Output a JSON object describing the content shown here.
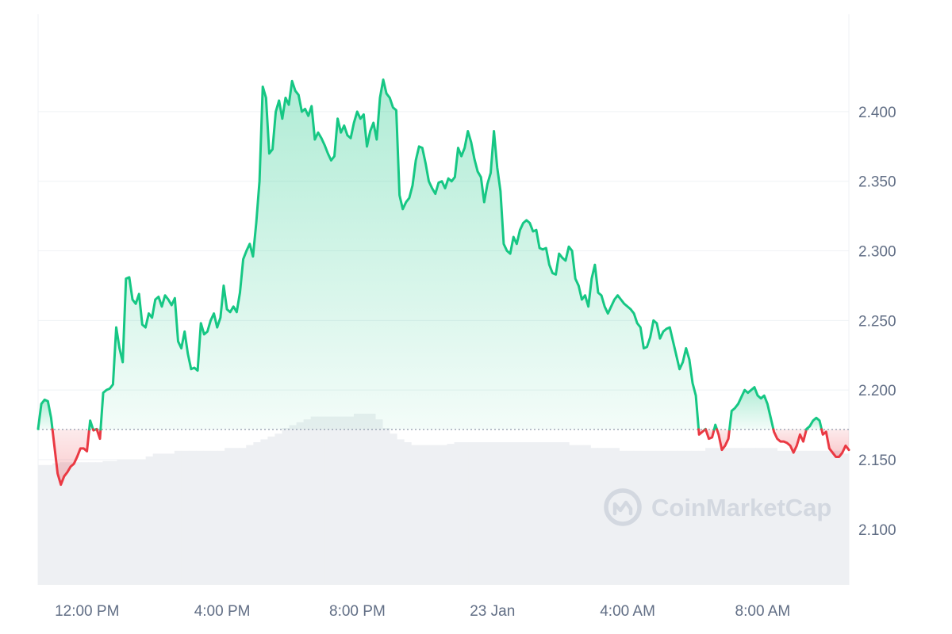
{
  "chart_data": {
    "type": "area",
    "baseline": 2.1717,
    "ylim": [
      2.06,
      2.47
    ],
    "y_ticks": [
      "2.400",
      "2.350",
      "2.300",
      "2.250",
      "2.200",
      "2.150",
      "2.100"
    ],
    "y_tick_values": [
      2.4,
      2.35,
      2.3,
      2.25,
      2.2,
      2.15,
      2.1
    ],
    "x_ticks": [
      "12:00 PM",
      "4:00 PM",
      "8:00 PM",
      "23 Jan",
      "4:00 AM",
      "8:00 AM"
    ],
    "x_tick_hours": [
      1.45,
      5.45,
      9.45,
      13.45,
      17.45,
      21.45
    ],
    "x_range_hours": [
      0,
      24
    ],
    "series": [
      {
        "values": [
          2.172,
          2.19,
          2.193,
          2.192,
          2.18,
          2.16,
          2.14,
          2.132,
          2.138,
          2.141,
          2.145,
          2.147,
          2.152,
          2.158,
          2.158,
          2.156,
          2.178,
          2.171,
          2.172,
          2.165,
          2.198,
          2.2,
          2.201,
          2.204,
          2.245,
          2.23,
          2.22,
          2.28,
          2.281,
          2.265,
          2.262,
          2.269,
          2.247,
          2.245,
          2.255,
          2.252,
          2.265,
          2.267,
          2.26,
          2.268,
          2.265,
          2.261,
          2.266,
          2.235,
          2.23,
          2.242,
          2.226,
          2.215,
          2.216,
          2.214,
          2.248,
          2.24,
          2.242,
          2.25,
          2.255,
          2.245,
          2.252,
          2.275,
          2.258,
          2.256,
          2.26,
          2.256,
          2.27,
          2.294,
          2.3,
          2.305,
          2.296,
          2.32,
          2.35,
          2.418,
          2.41,
          2.37,
          2.373,
          2.4,
          2.408,
          2.395,
          2.41,
          2.405,
          2.422,
          2.415,
          2.412,
          2.4,
          2.402,
          2.397,
          2.404,
          2.38,
          2.385,
          2.381,
          2.376,
          2.37,
          2.365,
          2.368,
          2.395,
          2.385,
          2.39,
          2.383,
          2.381,
          2.392,
          2.4,
          2.395,
          2.398,
          2.375,
          2.386,
          2.392,
          2.38,
          2.41,
          2.423,
          2.413,
          2.41,
          2.403,
          2.401,
          2.34,
          2.33,
          2.335,
          2.338,
          2.347,
          2.365,
          2.375,
          2.374,
          2.363,
          2.35,
          2.345,
          2.341,
          2.349,
          2.35,
          2.345,
          2.352,
          2.35,
          2.353,
          2.374,
          2.368,
          2.374,
          2.386,
          2.378,
          2.366,
          2.357,
          2.353,
          2.335,
          2.348,
          2.356,
          2.386,
          2.36,
          2.343,
          2.305,
          2.3,
          2.298,
          2.31,
          2.305,
          2.315,
          2.32,
          2.322,
          2.32,
          2.314,
          2.315,
          2.302,
          2.301,
          2.302,
          2.29,
          2.284,
          2.283,
          2.298,
          2.295,
          2.293,
          2.303,
          2.3,
          2.28,
          2.275,
          2.265,
          2.268,
          2.26,
          2.28,
          2.29,
          2.27,
          2.268,
          2.26,
          2.255,
          2.26,
          2.265,
          2.268,
          2.265,
          2.262,
          2.26,
          2.258,
          2.255,
          2.248,
          2.245,
          2.23,
          2.231,
          2.238,
          2.25,
          2.248,
          2.237,
          2.242,
          2.244,
          2.245,
          2.235,
          2.225,
          2.215,
          2.22,
          2.23,
          2.222,
          2.205,
          2.196,
          2.168,
          2.17,
          2.172,
          2.165,
          2.166,
          2.175,
          2.168,
          2.157,
          2.16,
          2.165,
          2.185,
          2.187,
          2.19,
          2.195,
          2.2,
          2.198,
          2.2,
          2.202,
          2.196,
          2.194,
          2.196,
          2.19,
          2.18,
          2.17,
          2.165,
          2.163,
          2.163,
          2.162,
          2.16,
          2.155,
          2.16,
          2.168,
          2.163,
          2.172,
          2.174,
          2.178,
          2.18,
          2.178,
          2.168,
          2.17,
          2.158,
          2.155,
          2.152,
          2.152,
          2.155,
          2.16,
          2.157
        ]
      }
    ],
    "volume": [
      0.21,
      0.21,
      0.213,
      0.215,
      0.215,
      0.215,
      0.215,
      0.215,
      0.215,
      0.217,
      0.217,
      0.22,
      0.22,
      0.22,
      0.22,
      0.225,
      0.23,
      0.23,
      0.23,
      0.235,
      0.235,
      0.235,
      0.235,
      0.235,
      0.235,
      0.235,
      0.24,
      0.24,
      0.24,
      0.245,
      0.25,
      0.255,
      0.26,
      0.265,
      0.275,
      0.28,
      0.285,
      0.29,
      0.295,
      0.295,
      0.295,
      0.295,
      0.295,
      0.295,
      0.3,
      0.3,
      0.3,
      0.29,
      0.275,
      0.265,
      0.255,
      0.25,
      0.245,
      0.245,
      0.245,
      0.245,
      0.245,
      0.247,
      0.25,
      0.25,
      0.25,
      0.25,
      0.25,
      0.25,
      0.25,
      0.25,
      0.25,
      0.25,
      0.25,
      0.25,
      0.25,
      0.25,
      0.25,
      0.25,
      0.245,
      0.245,
      0.245,
      0.24,
      0.24,
      0.24,
      0.24,
      0.235,
      0.235,
      0.235,
      0.235,
      0.235,
      0.235,
      0.235,
      0.235,
      0.235,
      0.235,
      0.235,
      0.235,
      0.24,
      0.24,
      0.24,
      0.24,
      0.24,
      0.24,
      0.24,
      0.24,
      0.24,
      0.24,
      0.235,
      0.235,
      0.235,
      0.235,
      0.235,
      0.235,
      0.235,
      0.235,
      0.235,
      0.23
    ],
    "colors": {
      "up": "#16c784",
      "down": "#ea3943",
      "grid": "#eff2f5",
      "tick": "#616e85",
      "volume": "#eef0f3"
    }
  },
  "watermark": {
    "text": "CoinMarketCap",
    "icon": "coinmarketcap-logo-icon"
  }
}
